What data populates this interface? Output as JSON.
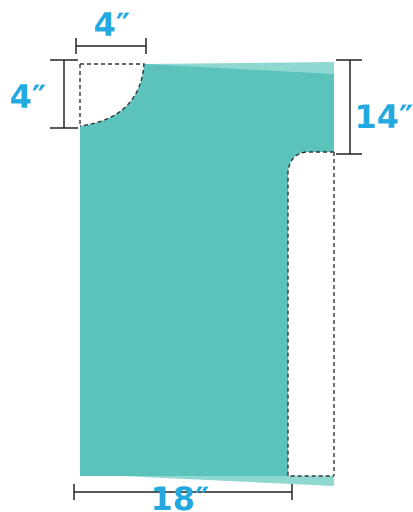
{
  "diagram": {
    "dimensions": {
      "neck_width": "4″",
      "neck_depth": "4″",
      "armhole_depth": "14″",
      "bottom_width": "18″"
    },
    "colors": {
      "fabric_main": "#5bc2bc",
      "fabric_light": "#8fd8d2",
      "cutline": "#333333",
      "dimension_line": "#222222",
      "dimension_text": "#23a8e0",
      "background": "#ffffff"
    }
  }
}
